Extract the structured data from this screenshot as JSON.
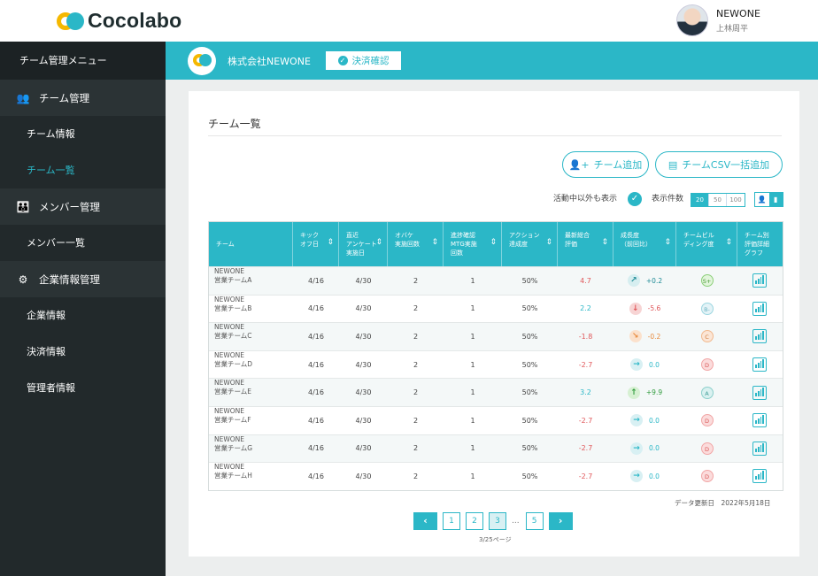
{
  "app": {
    "logo_text": "Cocolabo"
  },
  "user": {
    "name": "NEWONE",
    "sub": "上林周平"
  },
  "sidebar": {
    "header": "チーム管理メニュー",
    "sections": [
      {
        "label": "チーム管理",
        "icon": "users-icon",
        "items": [
          "チーム情報",
          "チーム一覧"
        ]
      },
      {
        "label": "メンバー管理",
        "icon": "members-icon",
        "items": [
          "メンバー一覧"
        ]
      },
      {
        "label": "企業情報管理",
        "icon": "gear-icon",
        "items": [
          "企業情報",
          "決済情報",
          "管理者情報"
        ]
      }
    ],
    "active_item": "チーム一覧"
  },
  "company": {
    "name": "株式会社NEWONE",
    "payment_button": "決済確認"
  },
  "page": {
    "title": "チーム一覧",
    "add_team": "チーム追加",
    "csv_add": "チームCSV一括追加",
    "show_inactive": "活動中以外も表示",
    "per_page_label": "表示件数",
    "per_page_options": [
      "20",
      "50",
      "100"
    ],
    "per_page_selected": "20"
  },
  "table": {
    "headers": [
      "チーム",
      "キック\nオフ日",
      "直近\nアンケート\n実施日",
      "オバケ\n実施回数",
      "進捗確認\nMTG実施\n回数",
      "アクション\n達成度",
      "最新総合\n評価",
      "成長度\n（前回比）",
      "チームビル\nディング度",
      "チーム別\n評価詳細\nグラフ"
    ],
    "rows": [
      {
        "company": "NEWONE",
        "team": "営業チームA",
        "kickoff": "4/16",
        "survey": "4/30",
        "obake": "2",
        "mtg": "1",
        "action": "50%",
        "score": "4.7",
        "score_color": "red",
        "growth_dir": "up-right",
        "growth": "+0.2",
        "grade": "S+"
      },
      {
        "company": "NEWONE",
        "team": "営業チームB",
        "kickoff": "4/16",
        "survey": "4/30",
        "obake": "2",
        "mtg": "1",
        "action": "50%",
        "score": "2.2",
        "score_color": "blue",
        "growth_dir": "down",
        "growth": "-5.6",
        "grade": "B-"
      },
      {
        "company": "NEWONE",
        "team": "営業チームC",
        "kickoff": "4/16",
        "survey": "4/30",
        "obake": "2",
        "mtg": "1",
        "action": "50%",
        "score": "-1.8",
        "score_color": "red",
        "growth_dir": "down-right",
        "growth": "-0.2",
        "grade": "C"
      },
      {
        "company": "NEWONE",
        "team": "営業チームD",
        "kickoff": "4/16",
        "survey": "4/30",
        "obake": "2",
        "mtg": "1",
        "action": "50%",
        "score": "-2.7",
        "score_color": "red",
        "growth_dir": "right",
        "growth": "0.0",
        "grade": "D"
      },
      {
        "company": "NEWONE",
        "team": "営業チームE",
        "kickoff": "4/16",
        "survey": "4/30",
        "obake": "2",
        "mtg": "1",
        "action": "50%",
        "score": "3.2",
        "score_color": "blue",
        "growth_dir": "up",
        "growth": "+9.9",
        "grade": "A"
      },
      {
        "company": "NEWONE",
        "team": "営業チームF",
        "kickoff": "4/16",
        "survey": "4/30",
        "obake": "2",
        "mtg": "1",
        "action": "50%",
        "score": "-2.7",
        "score_color": "red",
        "growth_dir": "right",
        "growth": "0.0",
        "grade": "D"
      },
      {
        "company": "NEWONE",
        "team": "営業チームG",
        "kickoff": "4/16",
        "survey": "4/30",
        "obake": "2",
        "mtg": "1",
        "action": "50%",
        "score": "-2.7",
        "score_color": "red",
        "growth_dir": "right",
        "growth": "0.0",
        "grade": "D"
      },
      {
        "company": "NEWONE",
        "team": "営業チームH",
        "kickoff": "4/16",
        "survey": "4/30",
        "obake": "2",
        "mtg": "1",
        "action": "50%",
        "score": "-2.7",
        "score_color": "red",
        "growth_dir": "right",
        "growth": "0.0",
        "grade": "D"
      }
    ]
  },
  "updated": "データ更新日　2022年5月18日",
  "pagination": {
    "pages": [
      "1",
      "2",
      "3",
      "5"
    ],
    "current": "3",
    "ellipsis": "...",
    "info": "3/25ページ"
  },
  "colors": {
    "accent": "#2bb7c7",
    "sidebar": "#22292b",
    "logo_yellow": "#f5b800",
    "negative": "#e0585b"
  }
}
